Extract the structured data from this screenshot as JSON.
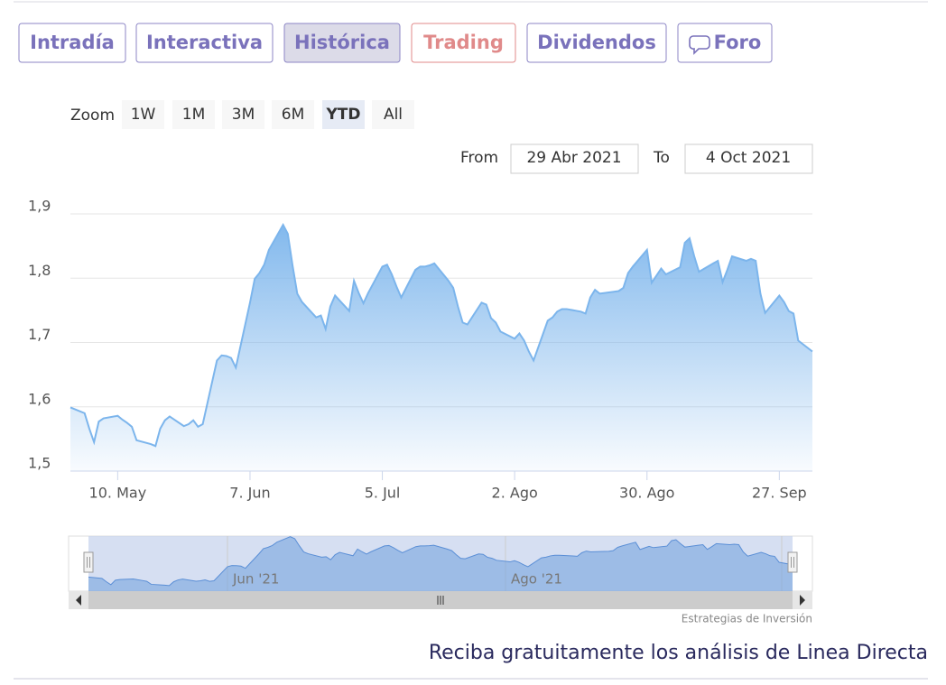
{
  "tabs": [
    "Intradía",
    "Interactiva",
    "Histórica",
    "Trading",
    "Dividendos",
    "Foro"
  ],
  "zoom": {
    "label": "Zoom",
    "buttons": [
      "1W",
      "1M",
      "3M",
      "6M",
      "YTD",
      "All"
    ]
  },
  "range": {
    "from_label": "From",
    "from": "29 Abr 2021",
    "to_label": "To",
    "to": "4 Oct 2021"
  },
  "chart_data": {
    "type": "area",
    "color": "#7cb5ec",
    "grid": true,
    "x": [
      "2021-04-30",
      "2021-05-03",
      "2021-05-04",
      "2021-05-05",
      "2021-05-06",
      "2021-05-07",
      "2021-05-10",
      "2021-05-11",
      "2021-05-12",
      "2021-05-13",
      "2021-05-14",
      "2021-05-17",
      "2021-05-18",
      "2021-05-19",
      "2021-05-20",
      "2021-05-21",
      "2021-05-24",
      "2021-05-25",
      "2021-05-26",
      "2021-05-27",
      "2021-05-28",
      "2021-05-31",
      "2021-06-01",
      "2021-06-02",
      "2021-06-03",
      "2021-06-04",
      "2021-06-07",
      "2021-06-08",
      "2021-06-09",
      "2021-06-10",
      "2021-06-11",
      "2021-06-14",
      "2021-06-15",
      "2021-06-16",
      "2021-06-17",
      "2021-06-18",
      "2021-06-21",
      "2021-06-22",
      "2021-06-23",
      "2021-06-24",
      "2021-06-25",
      "2021-06-28",
      "2021-06-29",
      "2021-06-30",
      "2021-07-01",
      "2021-07-02",
      "2021-07-05",
      "2021-07-06",
      "2021-07-07",
      "2021-07-08",
      "2021-07-09",
      "2021-07-12",
      "2021-07-13",
      "2021-07-14",
      "2021-07-15",
      "2021-07-16",
      "2021-07-19",
      "2021-07-20",
      "2021-07-21",
      "2021-07-22",
      "2021-07-23",
      "2021-07-26",
      "2021-07-27",
      "2021-07-28",
      "2021-07-29",
      "2021-07-30",
      "2021-08-02",
      "2021-08-03",
      "2021-08-04",
      "2021-08-05",
      "2021-08-06",
      "2021-08-09",
      "2021-08-10",
      "2021-08-11",
      "2021-08-12",
      "2021-08-13",
      "2021-08-16",
      "2021-08-17",
      "2021-08-18",
      "2021-08-19",
      "2021-08-20",
      "2021-08-23",
      "2021-08-24",
      "2021-08-25",
      "2021-08-26",
      "2021-08-27",
      "2021-08-30",
      "2021-08-31",
      "2021-09-01",
      "2021-09-02",
      "2021-09-03",
      "2021-09-06",
      "2021-09-07",
      "2021-09-08",
      "2021-09-09",
      "2021-09-10",
      "2021-09-13",
      "2021-09-14",
      "2021-09-15",
      "2021-09-16",
      "2021-09-17",
      "2021-09-20",
      "2021-09-21",
      "2021-09-22",
      "2021-09-23",
      "2021-09-24",
      "2021-09-27",
      "2021-09-28",
      "2021-09-29",
      "2021-09-30",
      "2021-10-01",
      "2021-10-04"
    ],
    "values": [
      1.599,
      1.59,
      1.566,
      1.545,
      1.577,
      1.582,
      1.586,
      1.58,
      1.575,
      1.569,
      1.548,
      1.542,
      1.539,
      1.566,
      1.579,
      1.585,
      1.57,
      1.573,
      1.579,
      1.569,
      1.573,
      1.672,
      1.68,
      1.679,
      1.676,
      1.661,
      1.762,
      1.799,
      1.808,
      1.821,
      1.844,
      1.883,
      1.869,
      1.82,
      1.776,
      1.763,
      1.739,
      1.742,
      1.721,
      1.756,
      1.773,
      1.749,
      1.796,
      1.777,
      1.761,
      1.777,
      1.818,
      1.821,
      1.806,
      1.787,
      1.77,
      1.813,
      1.818,
      1.818,
      1.82,
      1.823,
      1.796,
      1.785,
      1.756,
      1.731,
      1.728,
      1.762,
      1.759,
      1.738,
      1.731,
      1.717,
      1.706,
      1.714,
      1.703,
      1.686,
      1.672,
      1.734,
      1.739,
      1.748,
      1.752,
      1.752,
      1.748,
      1.745,
      1.77,
      1.782,
      1.776,
      1.779,
      1.78,
      1.785,
      1.808,
      1.818,
      1.844,
      1.793,
      1.804,
      1.815,
      1.806,
      1.817,
      1.855,
      1.862,
      1.834,
      1.81,
      1.823,
      1.827,
      1.794,
      1.813,
      1.834,
      1.827,
      1.83,
      1.827,
      1.776,
      1.746,
      1.773,
      1.763,
      1.749,
      1.745,
      1.703,
      1.686
    ],
    "xlim": [
      "2021-04-30",
      "2021-10-04"
    ],
    "xticks": [
      {
        "value": "2021-05-10",
        "label": "10. May"
      },
      {
        "value": "2021-06-07",
        "label": "7. Jun"
      },
      {
        "value": "2021-07-05",
        "label": "5. Jul"
      },
      {
        "value": "2021-08-02",
        "label": "2. Ago"
      },
      {
        "value": "2021-08-30",
        "label": "30. Ago"
      },
      {
        "value": "2021-09-27",
        "label": "27. Sep"
      }
    ],
    "ylim": [
      1.5,
      1.9
    ],
    "yticks": [
      {
        "value": 1.5,
        "label": "1,5"
      },
      {
        "value": 1.6,
        "label": "1,6"
      },
      {
        "value": 1.7,
        "label": "1,7"
      },
      {
        "value": 1.8,
        "label": "1,8"
      },
      {
        "value": 1.9,
        "label": "1,9"
      }
    ]
  },
  "navigator": {
    "labels": [
      "Jun '21",
      "Ago '21"
    ]
  },
  "credit": "Estrategias de Inversión",
  "footer_link": "Reciba gratuitamente los análisis de Linea Directa"
}
